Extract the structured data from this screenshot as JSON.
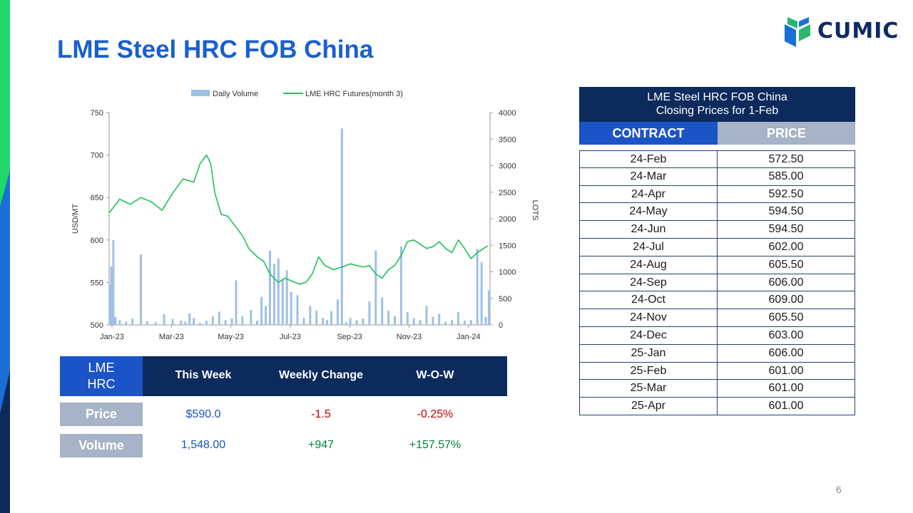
{
  "title": "LME Steel HRC FOB China",
  "logo": {
    "text": "CUMIC",
    "colors": {
      "green": "#2bb673",
      "blue": "#1a6fd6",
      "navy": "#0d2a66"
    }
  },
  "page_number": "6",
  "colors": {
    "title": "#1a5fd1",
    "navy": "#0d2a5c",
    "accent_blue": "#1a54c6",
    "grey": "#a7b3c6",
    "line": "#1fc25b",
    "bar": "#9fc0e4",
    "negative": "#c00000",
    "positive": "#00863d"
  },
  "chart_data": {
    "type": "bar+line",
    "legend": [
      "Daily Volume",
      "LME HRC Futures(month 3)"
    ],
    "legend_position": "top",
    "ylabel_left": "USD/MT",
    "ylabel_right": "LOTS",
    "ylim_left": [
      500,
      750
    ],
    "yticks_left": [
      "750",
      "700",
      "650",
      "600",
      "550",
      "500"
    ],
    "ylim_right": [
      0,
      4000
    ],
    "yticks_right": [
      "4000",
      "3500",
      "3000",
      "2500",
      "2000",
      "1500",
      "1000",
      "500",
      "0"
    ],
    "xticks": [
      "Jan-23",
      "Mar-23",
      "May-23",
      "Jul-23",
      "Sep-23",
      "Nov-23",
      "Jan-24"
    ],
    "price_series": {
      "name": "LME HRC Futures(month 3)",
      "points": [
        [
          0.0,
          632
        ],
        [
          0.5,
          648
        ],
        [
          1.0,
          642
        ],
        [
          1.5,
          650
        ],
        [
          2.0,
          645
        ],
        [
          2.5,
          635
        ],
        [
          3.0,
          655
        ],
        [
          3.5,
          672
        ],
        [
          4.0,
          668
        ],
        [
          4.3,
          690
        ],
        [
          4.6,
          700
        ],
        [
          4.8,
          690
        ],
        [
          5.0,
          655
        ],
        [
          5.3,
          630
        ],
        [
          5.6,
          628
        ],
        [
          6.0,
          615
        ],
        [
          6.3,
          605
        ],
        [
          6.6,
          590
        ],
        [
          7.0,
          580
        ],
        [
          7.3,
          575
        ],
        [
          7.6,
          560
        ],
        [
          8.0,
          550
        ],
        [
          8.3,
          555
        ],
        [
          8.6,
          552
        ],
        [
          9.0,
          548
        ],
        [
          9.3,
          550
        ],
        [
          9.6,
          560
        ],
        [
          9.9,
          580
        ],
        [
          10.2,
          570
        ],
        [
          10.6,
          565
        ],
        [
          11.0,
          568
        ],
        [
          11.4,
          572
        ],
        [
          11.7,
          570
        ],
        [
          12.0,
          568
        ],
        [
          12.3,
          570
        ],
        [
          12.6,
          560
        ],
        [
          12.9,
          555
        ],
        [
          13.2,
          565
        ],
        [
          13.5,
          570
        ],
        [
          13.8,
          582
        ],
        [
          14.1,
          598
        ],
        [
          14.4,
          600
        ],
        [
          14.7,
          595
        ],
        [
          15.0,
          590
        ],
        [
          15.3,
          592
        ],
        [
          15.6,
          598
        ],
        [
          15.9,
          590
        ],
        [
          16.2,
          585
        ],
        [
          16.5,
          600
        ],
        [
          16.8,
          590
        ],
        [
          17.1,
          578
        ],
        [
          17.4,
          585
        ],
        [
          17.7,
          590
        ],
        [
          17.9,
          593
        ]
      ]
    },
    "volume_series": {
      "name": "Daily Volume",
      "points": [
        [
          0.05,
          750
        ],
        [
          0.1,
          1100
        ],
        [
          0.2,
          1600
        ],
        [
          0.3,
          150
        ],
        [
          0.5,
          90
        ],
        [
          0.8,
          60
        ],
        [
          1.1,
          120
        ],
        [
          1.5,
          1330
        ],
        [
          1.8,
          70
        ],
        [
          2.2,
          50
        ],
        [
          2.6,
          200
        ],
        [
          3.0,
          110
        ],
        [
          3.4,
          80
        ],
        [
          3.6,
          60
        ],
        [
          3.8,
          220
        ],
        [
          4.0,
          130
        ],
        [
          4.3,
          40
        ],
        [
          4.6,
          80
        ],
        [
          4.9,
          160
        ],
        [
          5.2,
          250
        ],
        [
          5.5,
          90
        ],
        [
          5.8,
          120
        ],
        [
          6.0,
          840
        ],
        [
          6.3,
          160
        ],
        [
          6.7,
          280
        ],
        [
          7.0,
          80
        ],
        [
          7.2,
          530
        ],
        [
          7.4,
          350
        ],
        [
          7.6,
          1400
        ],
        [
          7.8,
          1150
        ],
        [
          8.0,
          1250
        ],
        [
          8.2,
          850
        ],
        [
          8.4,
          1030
        ],
        [
          8.6,
          620
        ],
        [
          8.9,
          560
        ],
        [
          9.2,
          130
        ],
        [
          9.5,
          360
        ],
        [
          9.8,
          270
        ],
        [
          10.1,
          130
        ],
        [
          10.3,
          90
        ],
        [
          10.5,
          260
        ],
        [
          10.8,
          480
        ],
        [
          11.0,
          3700
        ],
        [
          11.2,
          50
        ],
        [
          11.4,
          130
        ],
        [
          11.7,
          90
        ],
        [
          12.0,
          120
        ],
        [
          12.3,
          440
        ],
        [
          12.6,
          1400
        ],
        [
          12.9,
          520
        ],
        [
          13.2,
          270
        ],
        [
          13.5,
          160
        ],
        [
          13.8,
          1480
        ],
        [
          14.1,
          240
        ],
        [
          14.4,
          130
        ],
        [
          14.7,
          90
        ],
        [
          15.0,
          360
        ],
        [
          15.3,
          150
        ],
        [
          15.6,
          210
        ],
        [
          15.9,
          60
        ],
        [
          16.2,
          90
        ],
        [
          16.5,
          240
        ],
        [
          16.8,
          80
        ],
        [
          17.1,
          90
        ],
        [
          17.4,
          1430
        ],
        [
          17.6,
          1180
        ],
        [
          17.8,
          150
        ],
        [
          17.95,
          650
        ]
      ]
    }
  },
  "summary": {
    "header_left": "LME\nHRC",
    "columns": [
      "This Week",
      "Weekly Change",
      "W-O-W"
    ],
    "rows": [
      {
        "label": "Price",
        "values": [
          "$590.0",
          "-1.5",
          "-0.25%"
        ]
      },
      {
        "label": "Volume",
        "values": [
          "1,548.00",
          "+947",
          "+157.57%"
        ]
      }
    ]
  },
  "price_table": {
    "title_line1": "LME Steel HRC FOB China",
    "title_line2": "Closing Prices for 1-Feb",
    "col_contract": "CONTRACT",
    "col_price": "PRICE",
    "rows": [
      {
        "contract": "24-Feb",
        "price": "572.50"
      },
      {
        "contract": "24-Mar",
        "price": "585.00"
      },
      {
        "contract": "24-Apr",
        "price": "592.50"
      },
      {
        "contract": "24-May",
        "price": "594.50"
      },
      {
        "contract": "24-Jun",
        "price": "594.50"
      },
      {
        "contract": "24-Jul",
        "price": "602.00"
      },
      {
        "contract": "24-Aug",
        "price": "605.50"
      },
      {
        "contract": "24-Sep",
        "price": "606.00"
      },
      {
        "contract": "24-Oct",
        "price": "609.00"
      },
      {
        "contract": "24-Nov",
        "price": "605.50"
      },
      {
        "contract": "24-Dec",
        "price": "603.00"
      },
      {
        "contract": "25-Jan",
        "price": "606.00"
      },
      {
        "contract": "25-Feb",
        "price": "601.00"
      },
      {
        "contract": "25-Mar",
        "price": "601.00"
      },
      {
        "contract": "25-Apr",
        "price": "601.00"
      }
    ]
  }
}
